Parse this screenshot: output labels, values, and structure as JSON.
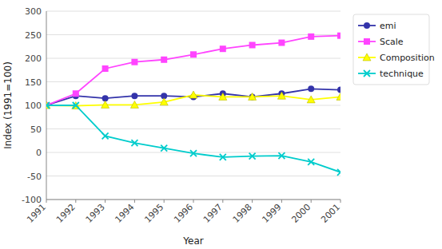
{
  "chart_data": {
    "type": "line",
    "x_label": "Year",
    "y_label": "Index (1991=100)",
    "x": [
      1991,
      1992,
      1993,
      1994,
      1995,
      1996,
      1997,
      1998,
      1999,
      2000,
      2001
    ],
    "series": [
      {
        "name": "emi",
        "color": "#3333AA",
        "marker": "circle",
        "values": [
          100,
          120,
          115,
          120,
          120,
          118,
          125,
          118,
          125,
          135,
          133
        ]
      },
      {
        "name": "Scale",
        "color": "#FF44FF",
        "marker": "square",
        "values": [
          100,
          125,
          178,
          192,
          197,
          208,
          220,
          228,
          233,
          246,
          248
        ]
      },
      {
        "name": "Composition",
        "color": "#FFFF00",
        "marker": "triangle",
        "values": [
          100,
          99,
          101,
          101,
          107,
          122,
          118,
          118,
          120,
          112,
          118
        ]
      },
      {
        "name": "technique",
        "color": "#00CCCC",
        "marker": "x",
        "values": [
          100,
          100,
          35,
          20,
          9,
          -2,
          -10,
          -8,
          -7,
          -20,
          -42
        ]
      }
    ],
    "xlim": [
      1991,
      2001
    ],
    "xticks": [
      1991,
      1992,
      1993,
      1994,
      1995,
      1996,
      1997,
      1998,
      1999,
      2000,
      2001
    ],
    "ylim": [
      -100,
      300
    ],
    "yticks": [
      -100,
      -50,
      0,
      50,
      100,
      150,
      200,
      250,
      300
    ],
    "grid": true,
    "legend": "right"
  }
}
